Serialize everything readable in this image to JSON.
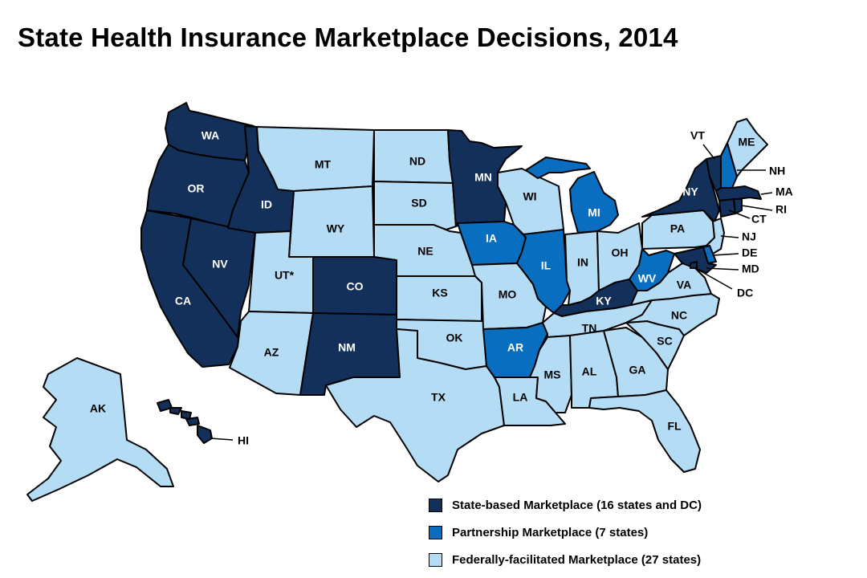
{
  "title": "State Health Insurance Marketplace Decisions, 2014",
  "colors": {
    "state_based": "#13305a",
    "partnership": "#0a6ec0",
    "federal": "#b4dcf4"
  },
  "legend": [
    {
      "category": "state_based",
      "label": "State-based Marketplace (16 states and DC)"
    },
    {
      "category": "partnership",
      "label": "Partnership Marketplace (7 states)"
    },
    {
      "category": "federal",
      "label": "Federally-facilitated Marketplace (27 states)"
    }
  ],
  "states": [
    {
      "code": "WA",
      "label": "WA",
      "category": "state_based"
    },
    {
      "code": "OR",
      "label": "OR",
      "category": "state_based"
    },
    {
      "code": "CA",
      "label": "CA",
      "category": "state_based"
    },
    {
      "code": "NV",
      "label": "NV",
      "category": "state_based"
    },
    {
      "code": "ID",
      "label": "ID",
      "category": "state_based"
    },
    {
      "code": "MT",
      "label": "MT",
      "category": "federal"
    },
    {
      "code": "WY",
      "label": "WY",
      "category": "federal"
    },
    {
      "code": "UT",
      "label": "UT*",
      "category": "federal"
    },
    {
      "code": "AZ",
      "label": "AZ",
      "category": "federal"
    },
    {
      "code": "CO",
      "label": "CO",
      "category": "state_based"
    },
    {
      "code": "NM",
      "label": "NM",
      "category": "state_based"
    },
    {
      "code": "ND",
      "label": "ND",
      "category": "federal"
    },
    {
      "code": "SD",
      "label": "SD",
      "category": "federal"
    },
    {
      "code": "NE",
      "label": "NE",
      "category": "federal"
    },
    {
      "code": "KS",
      "label": "KS",
      "category": "federal"
    },
    {
      "code": "OK",
      "label": "OK",
      "category": "federal"
    },
    {
      "code": "TX",
      "label": "TX",
      "category": "federal"
    },
    {
      "code": "MN",
      "label": "MN",
      "category": "state_based"
    },
    {
      "code": "IA",
      "label": "IA",
      "category": "partnership"
    },
    {
      "code": "MO",
      "label": "MO",
      "category": "federal"
    },
    {
      "code": "AR",
      "label": "AR",
      "category": "partnership"
    },
    {
      "code": "LA",
      "label": "LA",
      "category": "federal"
    },
    {
      "code": "WI",
      "label": "WI",
      "category": "federal"
    },
    {
      "code": "IL",
      "label": "IL",
      "category": "partnership"
    },
    {
      "code": "MI",
      "label": "MI",
      "category": "partnership"
    },
    {
      "code": "IN",
      "label": "IN",
      "category": "federal"
    },
    {
      "code": "OH",
      "label": "OH",
      "category": "federal"
    },
    {
      "code": "KY",
      "label": "KY",
      "category": "state_based"
    },
    {
      "code": "TN",
      "label": "TN",
      "category": "federal"
    },
    {
      "code": "MS",
      "label": "MS",
      "category": "federal"
    },
    {
      "code": "AL",
      "label": "AL",
      "category": "federal"
    },
    {
      "code": "GA",
      "label": "GA",
      "category": "federal"
    },
    {
      "code": "FL",
      "label": "FL",
      "category": "federal"
    },
    {
      "code": "SC",
      "label": "SC",
      "category": "federal"
    },
    {
      "code": "NC",
      "label": "NC",
      "category": "federal"
    },
    {
      "code": "VA",
      "label": "VA",
      "category": "federal"
    },
    {
      "code": "WV",
      "label": "WV",
      "category": "partnership"
    },
    {
      "code": "PA",
      "label": "PA",
      "category": "federal"
    },
    {
      "code": "NY",
      "label": "NY",
      "category": "state_based"
    },
    {
      "code": "VT",
      "label": "VT",
      "category": "state_based"
    },
    {
      "code": "NH",
      "label": "NH",
      "category": "partnership"
    },
    {
      "code": "ME",
      "label": "ME",
      "category": "federal"
    },
    {
      "code": "MA",
      "label": "MA",
      "category": "state_based"
    },
    {
      "code": "RI",
      "label": "RI",
      "category": "state_based"
    },
    {
      "code": "CT",
      "label": "CT",
      "category": "state_based"
    },
    {
      "code": "NJ",
      "label": "NJ",
      "category": "federal"
    },
    {
      "code": "DE",
      "label": "DE",
      "category": "partnership"
    },
    {
      "code": "MD",
      "label": "MD",
      "category": "state_based"
    },
    {
      "code": "DC",
      "label": "DC",
      "category": "state_based"
    },
    {
      "code": "AK",
      "label": "AK",
      "category": "federal"
    },
    {
      "code": "HI",
      "label": "HI",
      "category": "state_based"
    }
  ]
}
